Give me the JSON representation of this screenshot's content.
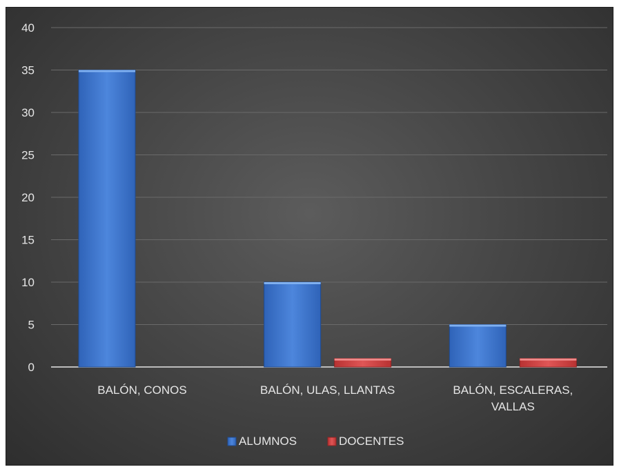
{
  "chart_data": {
    "type": "bar",
    "categories": [
      [
        "BALÓN, CONOS"
      ],
      [
        "BALÓN, ULAS, LLANTAS"
      ],
      [
        "BALÓN, ESCALERAS,",
        "VALLAS"
      ]
    ],
    "series": [
      {
        "name": "ALUMNOS",
        "values": [
          35,
          10,
          5
        ],
        "color": "#4a7fd4"
      },
      {
        "name": "DOCENTES",
        "values": [
          0,
          1,
          1
        ],
        "color": "#d94545"
      }
    ],
    "yticks": [
      "0",
      "5",
      "10",
      "15",
      "20",
      "25",
      "30",
      "35",
      "40"
    ],
    "ylim": [
      0,
      40
    ],
    "grid": true,
    "legend_position": "bottom",
    "title": "",
    "xlabel": "",
    "ylabel": ""
  }
}
